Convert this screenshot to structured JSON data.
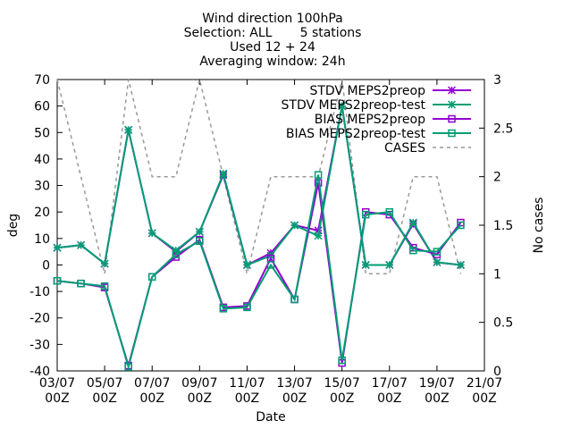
{
  "chart_data": {
    "type": "line",
    "title_lines": [
      "Wind direction 100hPa",
      "Selection: ALL       5 stations",
      "Used 12 + 24",
      "Averaging window: 24h"
    ],
    "xlabel": "Date",
    "ylabel": "deg",
    "y2label": "No cases",
    "x_ticks": [
      {
        "day": 3,
        "line1": "03/07",
        "line2": "00Z"
      },
      {
        "day": 5,
        "line1": "05/07",
        "line2": "00Z"
      },
      {
        "day": 7,
        "line1": "07/07",
        "line2": "00Z"
      },
      {
        "day": 9,
        "line1": "09/07",
        "line2": "00Z"
      },
      {
        "day": 11,
        "line1": "11/07",
        "line2": "00Z"
      },
      {
        "day": 13,
        "line1": "13/07",
        "line2": "00Z"
      },
      {
        "day": 15,
        "line1": "15/07",
        "line2": "00Z"
      },
      {
        "day": 17,
        "line1": "17/07",
        "line2": "00Z"
      },
      {
        "day": 19,
        "line1": "19/07",
        "line2": "00Z"
      },
      {
        "day": 21,
        "line1": "21/07",
        "line2": "00Z"
      }
    ],
    "xlim": [
      3,
      21
    ],
    "ylim": [
      -40,
      70
    ],
    "y_ticks": [
      -40,
      -30,
      -20,
      -10,
      0,
      10,
      20,
      30,
      40,
      50,
      60,
      70
    ],
    "y2lim": [
      0,
      3
    ],
    "y2_ticks": [
      "0",
      "0.5",
      "1",
      "1.5",
      "2",
      "2.5",
      "3"
    ],
    "grid": false,
    "legend_position": "top-right",
    "x_days": [
      3,
      4,
      5,
      6,
      7,
      8,
      9,
      10,
      11,
      12,
      13,
      14,
      15,
      16,
      17,
      18,
      19,
      20
    ],
    "series": [
      {
        "name": "STDV MEPS2preop",
        "axis": "y1",
        "color": "#9400d3",
        "marker": "star",
        "dash": "",
        "values": [
          6.5,
          7.5,
          0.5,
          51,
          12,
          5,
          12.5,
          34,
          0,
          4.5,
          15,
          13,
          60,
          0,
          0,
          15.5,
          1,
          0
        ]
      },
      {
        "name": "STDV MEPS2preop-test",
        "axis": "y1",
        "color": "#009e73",
        "marker": "star",
        "dash": "",
        "values": [
          6.5,
          7.5,
          0.5,
          51,
          12,
          5.5,
          12.5,
          34.5,
          0,
          3.5,
          15,
          11,
          60,
          0,
          0,
          16,
          1,
          0
        ]
      },
      {
        "name": "BIAS MEPS2preop",
        "axis": "y1",
        "color": "#9400d3",
        "marker": "square",
        "dash": "",
        "values": [
          -6,
          -7,
          -8.5,
          -38,
          -4.5,
          3,
          9.5,
          -16,
          -15.5,
          2.5,
          -13,
          31,
          -37,
          20,
          19,
          6.5,
          4,
          16
        ]
      },
      {
        "name": "BIAS MEPS2preop-test",
        "axis": "y1",
        "color": "#009e73",
        "marker": "square",
        "dash": "",
        "values": [
          -6,
          -7,
          -8,
          -38.5,
          -4.5,
          4,
          9,
          -16.5,
          -16,
          0,
          -13,
          34,
          -36,
          19,
          20,
          5.5,
          5,
          15
        ]
      },
      {
        "name": "CASES",
        "axis": "y2",
        "color": "#999999",
        "marker": "none",
        "dash": "4,4",
        "values": [
          3,
          2,
          1,
          3,
          2,
          2,
          3,
          2,
          1,
          2,
          2,
          2,
          3,
          1,
          1,
          2,
          2,
          1
        ]
      }
    ]
  }
}
